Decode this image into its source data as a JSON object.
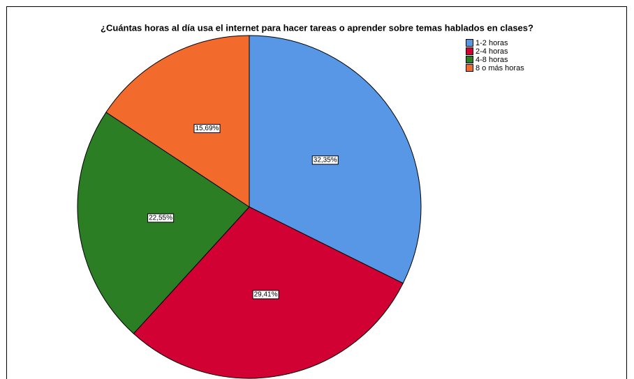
{
  "chart_data": {
    "type": "pie",
    "title": "¿Cuántas horas al día usa el internet para hacer tareas o aprender sobre temas hablados en clases?",
    "categories": [
      "1-2 horas",
      "2-4 horas",
      "4-8 horas",
      "8 o más horas"
    ],
    "series": [
      {
        "values": [
          32.35,
          29.41,
          22.55,
          15.69
        ],
        "value_labels": [
          "32,35%",
          "29,41%",
          "22,55%",
          "15,69%"
        ]
      }
    ],
    "colors": [
      "#5797e6",
      "#d20133",
      "#2c7e25",
      "#f26b2c"
    ],
    "legend": "top-right"
  }
}
